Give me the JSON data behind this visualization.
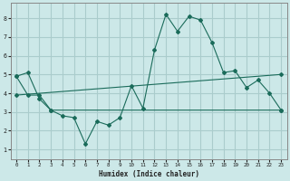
{
  "xlabel": "Humidex (Indice chaleur)",
  "background_color": "#cce8e8",
  "grid_color": "#aacccc",
  "line_color": "#1a6b5a",
  "xlim": [
    -0.5,
    23.5
  ],
  "ylim": [
    0.5,
    8.8
  ],
  "xticks": [
    0,
    1,
    2,
    3,
    4,
    5,
    6,
    7,
    8,
    9,
    10,
    11,
    12,
    13,
    14,
    15,
    16,
    17,
    18,
    19,
    20,
    21,
    22,
    23
  ],
  "yticks": [
    1,
    2,
    3,
    4,
    5,
    6,
    7,
    8
  ],
  "line1_x": [
    0,
    1,
    2,
    3,
    4,
    5,
    6,
    7,
    8,
    9,
    10,
    11,
    12,
    13,
    14,
    15,
    16,
    17,
    18,
    19,
    20,
    21,
    22,
    23
  ],
  "line1_y": [
    4.9,
    5.1,
    3.7,
    3.1,
    2.8,
    2.7,
    1.3,
    2.5,
    2.3,
    2.7,
    4.4,
    3.2,
    6.3,
    8.2,
    7.3,
    8.1,
    7.9,
    6.7,
    5.1,
    5.2,
    4.3,
    4.7,
    4.0,
    3.1
  ],
  "line2_x": [
    0,
    1,
    2,
    3,
    23
  ],
  "line2_y": [
    4.9,
    3.9,
    3.9,
    3.1,
    3.1
  ],
  "line3_x": [
    0,
    23
  ],
  "line3_y": [
    3.9,
    5.0
  ]
}
